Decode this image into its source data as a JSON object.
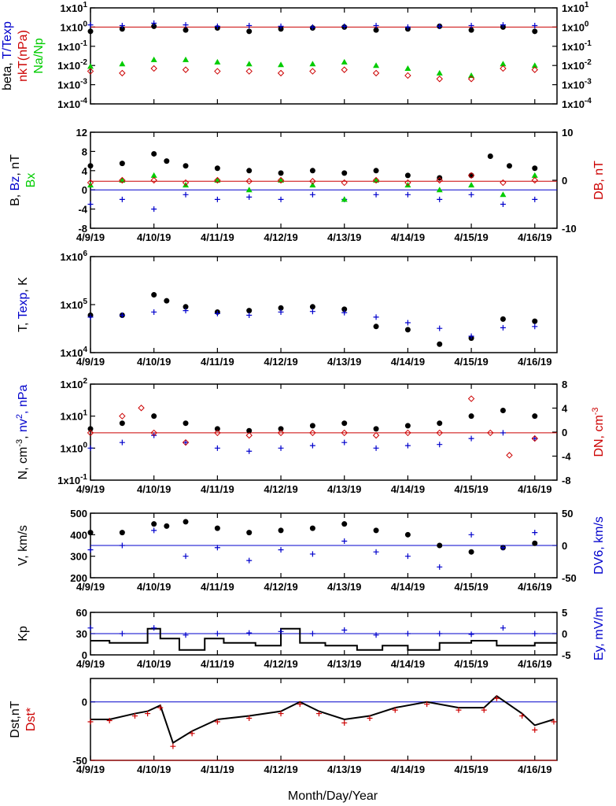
{
  "x_axis": {
    "title": "Month/Day/Year",
    "tick_labels": [
      "4/9/19",
      "4/10/19",
      "4/11/19",
      "4/12/19",
      "4/13/19",
      "4/14/19",
      "4/15/19",
      "4/16/19"
    ],
    "range_days": [
      0,
      7.35
    ]
  },
  "chart_data": [
    {
      "type": "scatter",
      "id": "plasma-beta",
      "y_scale": "log",
      "ylim": [
        0.0001,
        10
      ],
      "left_tick_labels": [
        "1x10",
        "1x10",
        "1x10",
        "1x10",
        "1x10",
        "1x10"
      ],
      "left_tick_exps": [
        "1",
        "0",
        "-1",
        "-2",
        "-3",
        "-4"
      ],
      "right_tick_labels": [
        "1x10",
        "1x10",
        "1x10",
        "1x10",
        "1x10",
        "1x10"
      ],
      "right_tick_exps": [
        "1",
        "0",
        "-1",
        "-2",
        "-3",
        "-4"
      ],
      "ylabel_parts": [
        {
          "text": "beta, ",
          "color": "#000000"
        },
        {
          "text": "T/Texp",
          "color": "#0000cc"
        }
      ],
      "ylabel2_parts": [
        {
          "text": "nkT(nPa)",
          "color": "#cc0000"
        }
      ],
      "ylabel3_parts": [
        {
          "text": "Na/Np",
          "color": "#00cc00"
        }
      ],
      "ref_lines": [
        {
          "y": 1,
          "color": "#cc0000"
        }
      ],
      "series": [
        {
          "kind": "dot",
          "color": "#000000",
          "x": [
            0,
            0.5,
            1,
            1.5,
            2,
            2.5,
            3,
            3.5,
            4,
            4.5,
            5,
            5.5,
            6,
            6.5,
            7
          ],
          "y": [
            0.6,
            0.8,
            1.1,
            0.7,
            0.9,
            0.6,
            0.8,
            0.9,
            1.0,
            0.7,
            0.8,
            1.1,
            0.7,
            1.0,
            0.6
          ]
        },
        {
          "kind": "cross",
          "color": "#0000cc",
          "x": [
            0,
            0.5,
            1,
            1.5,
            2,
            2.5,
            3,
            3.5,
            4,
            4.5,
            5,
            5.5,
            6,
            6.5,
            7
          ],
          "y": [
            1.3,
            1.2,
            1.6,
            1.3,
            1.1,
            1.2,
            1.1,
            1.0,
            1.1,
            1.2,
            1.0,
            1.1,
            1.2,
            1.3,
            1.2
          ]
        },
        {
          "kind": "tri",
          "color": "#00cc00",
          "x": [
            0,
            0.5,
            1,
            1.5,
            2,
            2.5,
            3,
            3.5,
            4,
            4.5,
            5,
            5.5,
            6,
            6.5,
            7
          ],
          "y": [
            0.009,
            0.012,
            0.02,
            0.02,
            0.015,
            0.012,
            0.011,
            0.012,
            0.015,
            0.01,
            0.007,
            0.004,
            0.003,
            0.012,
            0.01
          ]
        },
        {
          "kind": "diamond",
          "color": "#cc0000",
          "x": [
            0,
            0.5,
            1,
            1.5,
            2,
            2.5,
            3,
            3.5,
            4,
            4.5,
            5,
            5.5,
            6,
            6.5,
            7
          ],
          "y": [
            0.005,
            0.004,
            0.007,
            0.006,
            0.005,
            0.005,
            0.004,
            0.005,
            0.006,
            0.004,
            0.003,
            0.002,
            0.002,
            0.007,
            0.006
          ]
        }
      ]
    },
    {
      "type": "scatter",
      "id": "magnetic-field",
      "y_scale": "linear",
      "ylim": [
        -8,
        12
      ],
      "y2lim": [
        -10,
        10
      ],
      "left_tick_labels": [
        "12",
        "8",
        "4",
        "0",
        "-4",
        "-8"
      ],
      "left_tick_values": [
        12,
        8,
        4,
        0,
        -4,
        -8
      ],
      "right_tick_labels": [
        "10",
        "0",
        "-10"
      ],
      "right_tick_values": [
        10,
        0,
        -10
      ],
      "ylabel_parts": [
        {
          "text": "B, ",
          "color": "#000000"
        },
        {
          "text": "Bz",
          "color": "#0000cc"
        },
        {
          "text": ", nT",
          "color": "#000000"
        }
      ],
      "ylabel2_parts": [
        {
          "text": "Bx",
          "color": "#00cc00"
        }
      ],
      "right_label_parts": [
        {
          "text": "DB, nT",
          "color": "#cc0000"
        }
      ],
      "ref_lines": [
        {
          "y": 0,
          "color": "#0000cc"
        },
        {
          "y": 1.8,
          "color": "#cc0000"
        }
      ],
      "series": [
        {
          "kind": "dot",
          "color": "#000000",
          "x": [
            0,
            0.5,
            1,
            1.2,
            1.5,
            2,
            2.5,
            3,
            3.5,
            4,
            4.5,
            5,
            5.5,
            6,
            6.3,
            6.6,
            7
          ],
          "y": [
            5,
            5.5,
            7.5,
            6,
            5,
            4.5,
            4,
            3.5,
            4,
            3.5,
            4,
            3,
            2.5,
            3,
            7,
            5,
            4.5
          ]
        },
        {
          "kind": "cross",
          "color": "#0000cc",
          "x": [
            0,
            0.5,
            1,
            1.5,
            2,
            2.5,
            3,
            3.5,
            4,
            4.5,
            5,
            5.5,
            6,
            6.5,
            7
          ],
          "y": [
            -3,
            -2,
            -4,
            -1,
            -2,
            -1.5,
            -2,
            -1,
            -2,
            -1,
            -1,
            -2,
            -1,
            -3,
            -2
          ]
        },
        {
          "kind": "tri",
          "color": "#00cc00",
          "x": [
            0,
            0.5,
            1,
            1.5,
            2,
            2.5,
            3,
            3.5,
            4,
            4.5,
            5,
            5.5,
            6,
            6.5,
            7
          ],
          "y": [
            1,
            2,
            3,
            1,
            2,
            0,
            2,
            1,
            -2,
            2,
            1,
            0,
            1,
            -1,
            3
          ]
        },
        {
          "kind": "diamond",
          "color": "#cc0000",
          "x": [
            0,
            0.5,
            1,
            1.5,
            2,
            2.5,
            3,
            3.5,
            4,
            4.5,
            5,
            5.5,
            6,
            6.5,
            7
          ],
          "y": [
            1.5,
            2,
            2,
            1.5,
            2,
            1.8,
            2,
            1.8,
            1.5,
            2,
            1.5,
            2,
            3,
            1.5,
            2
          ]
        }
      ]
    },
    {
      "type": "scatter",
      "id": "temperature",
      "y_scale": "log",
      "ylim": [
        10000,
        1000000
      ],
      "left_tick_labels": [
        "1x10",
        "1x10",
        "1x10"
      ],
      "left_tick_exps": [
        "6",
        "5",
        "4"
      ],
      "ylabel_parts": [
        {
          "text": "T, ",
          "color": "#000000"
        },
        {
          "text": "Texp",
          "color": "#0000cc"
        },
        {
          "text": ", K",
          "color": "#000000"
        }
      ],
      "series": [
        {
          "kind": "dot",
          "color": "#000000",
          "x": [
            0,
            0.5,
            1,
            1.2,
            1.5,
            2,
            2.5,
            3,
            3.5,
            4,
            4.5,
            5,
            5.5,
            6,
            6.5,
            7
          ],
          "y": [
            60000,
            60000,
            160000,
            120000,
            90000,
            70000,
            75000,
            85000,
            90000,
            80000,
            35000,
            30000,
            15000,
            20000,
            50000,
            45000
          ]
        },
        {
          "kind": "cross",
          "color": "#0000cc",
          "x": [
            0,
            0.5,
            1,
            1.5,
            2,
            2.5,
            3,
            3.5,
            4,
            4.5,
            5,
            5.5,
            6,
            6.5,
            7
          ],
          "y": [
            55000,
            60000,
            70000,
            75000,
            65000,
            60000,
            70000,
            72000,
            68000,
            55000,
            42000,
            32000,
            22000,
            33000,
            35000
          ]
        }
      ]
    },
    {
      "type": "scatter",
      "id": "density",
      "y_scale": "log",
      "ylim": [
        0.1,
        100
      ],
      "y2lim": [
        -8,
        8
      ],
      "left_tick_labels": [
        "1x10",
        "1x10",
        "1x10",
        "1x10"
      ],
      "left_tick_exps": [
        "2",
        "1",
        "0",
        "-1"
      ],
      "right_tick_labels": [
        "8",
        "4",
        "0",
        "-4",
        "-8"
      ],
      "right_tick_values": [
        8,
        4,
        0,
        -4,
        -8
      ],
      "ylabel_parts": [
        {
          "text": "N, cm",
          "color": "#000000"
        },
        {
          "text": "-3",
          "color": "#000000",
          "sup": true
        },
        {
          "text": ", ",
          "color": "#000000"
        },
        {
          "text": "nv",
          "color": "#0000cc"
        },
        {
          "text": "2",
          "color": "#0000cc",
          "sup": true
        },
        {
          "text": ", nPa",
          "color": "#0000cc"
        }
      ],
      "right_label_parts": [
        {
          "text": "DN, cm",
          "color": "#cc0000"
        },
        {
          "text": "-3",
          "color": "#cc0000",
          "sup": true
        }
      ],
      "ref_lines": [
        {
          "y": 3,
          "color": "#cc0000"
        }
      ],
      "series": [
        {
          "kind": "dot",
          "color": "#000000",
          "x": [
            0,
            0.5,
            1,
            1.5,
            2,
            2.5,
            3,
            3.5,
            4,
            4.5,
            5,
            5.5,
            6,
            6.5,
            7
          ],
          "y": [
            4,
            6,
            10,
            6,
            4,
            3.5,
            4,
            5,
            6,
            4,
            5,
            6,
            10,
            15,
            10
          ]
        },
        {
          "kind": "cross",
          "color": "#0000cc",
          "x": [
            0,
            0.5,
            1,
            1.5,
            2,
            2.5,
            3,
            3.5,
            4,
            4.5,
            5,
            5.5,
            6,
            6.5,
            7
          ],
          "y": [
            1,
            1.5,
            2.5,
            1.5,
            1,
            0.8,
            1,
            1.2,
            1.5,
            1,
            1.2,
            1.3,
            2,
            3,
            2
          ]
        },
        {
          "kind": "diamond",
          "color": "#cc0000",
          "x": [
            0,
            0.5,
            0.8,
            1,
            1.5,
            2,
            2.5,
            3,
            3.5,
            4,
            4.5,
            5,
            5.5,
            6,
            6.3,
            6.6,
            7
          ],
          "y": [
            3,
            10,
            18,
            3,
            1.5,
            3,
            2.5,
            3,
            3,
            3,
            2.5,
            3,
            3,
            35,
            3,
            0.6,
            2
          ]
        }
      ]
    },
    {
      "type": "scatter",
      "id": "velocity",
      "y_scale": "linear",
      "ylim": [
        200,
        500
      ],
      "y2lim": [
        -50,
        50
      ],
      "left_tick_labels": [
        "500",
        "400",
        "300",
        "200"
      ],
      "left_tick_values": [
        500,
        400,
        300,
        200
      ],
      "right_tick_labels": [
        "50",
        "0",
        "-50"
      ],
      "right_tick_values": [
        50,
        0,
        -50
      ],
      "ylabel_parts": [
        {
          "text": "V, km/s",
          "color": "#000000"
        }
      ],
      "right_label_parts": [
        {
          "text": "DV6, km/s",
          "color": "#0000cc"
        }
      ],
      "ref_lines": [
        {
          "y": 350,
          "color": "#0000cc"
        }
      ],
      "series": [
        {
          "kind": "dot",
          "color": "#000000",
          "x": [
            0,
            0.5,
            1,
            1.2,
            1.5,
            2,
            2.5,
            3,
            3.5,
            4,
            4.5,
            5,
            5.5,
            6,
            6.5,
            7
          ],
          "y": [
            410,
            410,
            450,
            440,
            460,
            430,
            410,
            420,
            430,
            450,
            420,
            400,
            350,
            320,
            340,
            360
          ]
        },
        {
          "kind": "cross",
          "color": "#0000cc",
          "x": [
            0,
            0.5,
            1,
            1.5,
            2,
            2.5,
            3,
            3.5,
            4,
            4.5,
            5,
            5.5,
            6,
            6.5,
            7
          ],
          "y": [
            330,
            350,
            420,
            300,
            340,
            280,
            330,
            310,
            370,
            320,
            300,
            250,
            400,
            340,
            410
          ]
        }
      ]
    },
    {
      "type": "line",
      "id": "kp-index",
      "y_scale": "linear",
      "ylim": [
        0,
        60
      ],
      "y2lim": [
        -5,
        5
      ],
      "left_tick_labels": [
        "60",
        "30",
        "0"
      ],
      "left_tick_values": [
        60,
        30,
        0
      ],
      "right_tick_labels": [
        "5",
        "0",
        "-5"
      ],
      "right_tick_values": [
        5,
        0,
        -5
      ],
      "ylabel_parts": [
        {
          "text": "Kp",
          "color": "#000000"
        }
      ],
      "right_label_parts": [
        {
          "text": "Ey, mV/m",
          "color": "#0000cc"
        }
      ],
      "ref_lines": [
        {
          "y": 30,
          "color": "#0000cc"
        }
      ],
      "series": [
        {
          "kind": "step",
          "color": "#000000",
          "x": [
            0,
            0.3,
            0.9,
            1.1,
            1.4,
            1.8,
            2.1,
            2.6,
            3.0,
            3.3,
            3.7,
            4.2,
            4.6,
            5.0,
            5.5,
            6.0,
            6.4,
            7.0
          ],
          "y": [
            20,
            17,
            37,
            23,
            7,
            23,
            17,
            13,
            37,
            17,
            13,
            7,
            13,
            7,
            17,
            20,
            13,
            17
          ]
        },
        {
          "kind": "cross",
          "color": "#0000cc",
          "x": [
            0,
            0.5,
            1,
            1.5,
            2,
            2.5,
            3,
            3.5,
            4,
            4.5,
            5,
            5.5,
            6,
            6.5,
            7
          ],
          "y": [
            38,
            30,
            38,
            28,
            30,
            31,
            33,
            30,
            35,
            28,
            30,
            30,
            29,
            38,
            30
          ]
        }
      ]
    },
    {
      "type": "line",
      "id": "dst-index",
      "y_scale": "linear",
      "ylim": [
        -50,
        20
      ],
      "left_tick_labels": [
        "0",
        "-50"
      ],
      "left_tick_values": [
        0,
        -50
      ],
      "ylabel_parts": [
        {
          "text": "Dst,nT",
          "color": "#000000"
        }
      ],
      "ylabel2_parts": [
        {
          "text": "Dst*",
          "color": "#cc0000"
        }
      ],
      "ref_lines": [
        {
          "y": 0,
          "color": "#0000cc"
        },
        {
          "y": -50,
          "color": "#cc0000"
        }
      ],
      "series": [
        {
          "kind": "line",
          "color": "#000000",
          "x": [
            0,
            0.3,
            0.7,
            0.9,
            1.1,
            1.3,
            1.6,
            2,
            2.5,
            3,
            3.3,
            3.6,
            4,
            4.4,
            4.8,
            5.3,
            5.8,
            6.2,
            6.4,
            6.8,
            7.0,
            7.3
          ],
          "y": [
            -15,
            -15,
            -10,
            -8,
            -3,
            -35,
            -25,
            -15,
            -12,
            -8,
            0,
            -8,
            -15,
            -12,
            -5,
            0,
            -5,
            -5,
            5,
            -10,
            -20,
            -15
          ]
        },
        {
          "kind": "cross",
          "color": "#cc0000",
          "x": [
            0,
            0.3,
            0.7,
            0.9,
            1.1,
            1.3,
            1.6,
            2,
            2.5,
            3,
            3.3,
            3.6,
            4,
            4.4,
            4.8,
            5.3,
            5.8,
            6.2,
            6.4,
            6.8,
            7.0,
            7.3
          ],
          "y": [
            -17,
            -16,
            -12,
            -10,
            -5,
            -38,
            -27,
            -17,
            -14,
            -10,
            -2,
            -10,
            -18,
            -14,
            -7,
            -2,
            -7,
            -7,
            3,
            -12,
            -24,
            -17
          ]
        }
      ]
    }
  ]
}
